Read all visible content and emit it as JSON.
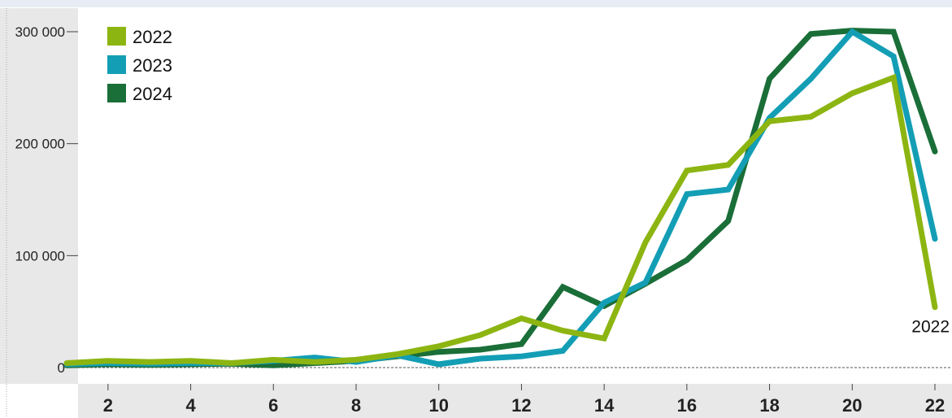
{
  "chart_data": {
    "type": "line",
    "title": "",
    "xlabel": "",
    "ylabel": "",
    "x": [
      1,
      2,
      3,
      4,
      5,
      6,
      7,
      8,
      9,
      10,
      11,
      12,
      13,
      14,
      15,
      16,
      17,
      18,
      19,
      20,
      21,
      22
    ],
    "x_ticks": [
      2,
      4,
      6,
      8,
      10,
      12,
      14,
      16,
      18,
      20,
      22
    ],
    "xlim": [
      0.5,
      22.5
    ],
    "ylim": [
      -7000,
      322000
    ],
    "y_ticks": [
      0,
      100000,
      200000,
      300000
    ],
    "y_tick_labels": [
      "0",
      "100 000",
      "200 000",
      "300 000"
    ],
    "grid": false,
    "zero_line": "dotted",
    "legend_position": "top-left",
    "end_label": "2022",
    "series": [
      {
        "name": "2024",
        "color": "#1a6e38",
        "values": [
          2000,
          3000,
          2500,
          3000,
          3500,
          2000,
          4000,
          6000,
          10000,
          14000,
          16000,
          21000,
          72000,
          55000,
          75000,
          96000,
          131000,
          258000,
          298000,
          301000,
          300000,
          193000
        ]
      },
      {
        "name": "2023",
        "color": "#139eb5",
        "values": [
          3000,
          4000,
          3500,
          4000,
          4000,
          6000,
          9000,
          5000,
          11000,
          3000,
          8000,
          10000,
          15000,
          58000,
          76000,
          155000,
          159000,
          223000,
          258000,
          300000,
          278000,
          115000
        ]
      },
      {
        "name": "2022",
        "color": "#8db512",
        "values": [
          4000,
          6000,
          5000,
          6000,
          4000,
          7000,
          5000,
          7000,
          12000,
          19000,
          29000,
          44000,
          33000,
          26000,
          112000,
          176000,
          181000,
          220000,
          224000,
          245000,
          259000,
          54000
        ]
      }
    ],
    "legend": [
      {
        "name": "2022",
        "color": "#8db512"
      },
      {
        "name": "2023",
        "color": "#139eb5"
      },
      {
        "name": "2024",
        "color": "#1a6e38"
      }
    ]
  }
}
